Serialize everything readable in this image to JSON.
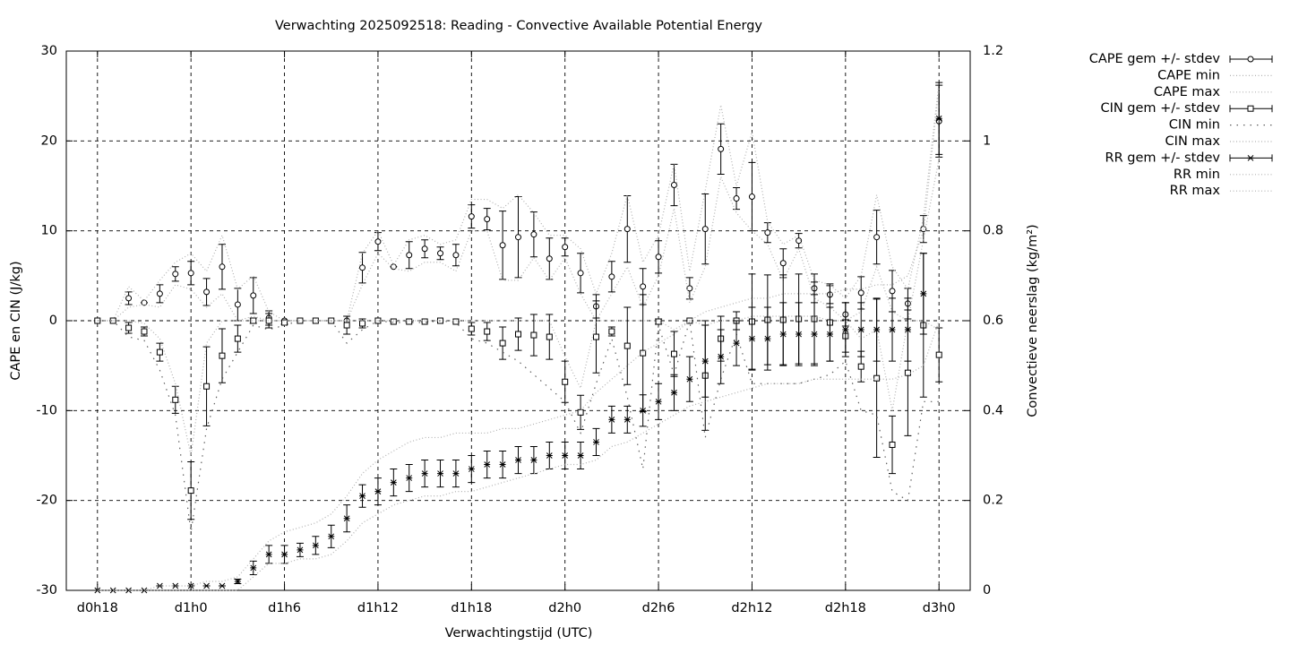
{
  "chart_data": {
    "type": "errorbar",
    "title": "Verwachting 2025092518: Reading - Convective Available Potential Energy",
    "xlabel": "Verwachtingstijd (UTC)",
    "ylabel": "CAPE en CIN (J/kg)",
    "y2label": "Convectieve neerslag (kg/m²)",
    "grid": true,
    "legend": "outside-top-right",
    "xlim": [
      16,
      74
    ],
    "xticks": [
      {
        "value": 18,
        "label": "d0h18"
      },
      {
        "value": 24,
        "label": "d1h0"
      },
      {
        "value": 30,
        "label": "d1h6"
      },
      {
        "value": 36,
        "label": "d1h12"
      },
      {
        "value": 42,
        "label": "d1h18"
      },
      {
        "value": 48,
        "label": "d2h0"
      },
      {
        "value": 54,
        "label": "d2h6"
      },
      {
        "value": 60,
        "label": "d2h12"
      },
      {
        "value": 66,
        "label": "d2h18"
      },
      {
        "value": 72,
        "label": "d3h0"
      }
    ],
    "ylim": [
      -30,
      30
    ],
    "yticks": [
      -30,
      -20,
      -10,
      0,
      10,
      20,
      30
    ],
    "y2lim": [
      0,
      1.2
    ],
    "y2ticks": [
      0,
      0.2,
      0.4,
      0.6,
      0.8,
      1,
      1.2
    ],
    "x": [
      18,
      19,
      20,
      21,
      22,
      23,
      24,
      25,
      26,
      27,
      28,
      29,
      30,
      31,
      32,
      33,
      34,
      35,
      36,
      37,
      38,
      39,
      40,
      41,
      42,
      43,
      44,
      45,
      46,
      47,
      48,
      49,
      50,
      51,
      52,
      53,
      54,
      55,
      56,
      57,
      58,
      59,
      60,
      61,
      62,
      63,
      64,
      65,
      66,
      67,
      68,
      69,
      70,
      71,
      72
    ],
    "series": [
      {
        "name": "CAPE gem +/- stdev",
        "color": "#000000",
        "marker": "circle",
        "values": [
          0,
          0,
          2.5,
          2.0,
          3.0,
          5.2,
          5.3,
          3.2,
          6.0,
          1.8,
          2.8,
          0.3,
          0,
          0,
          0,
          0,
          0,
          5.9,
          8.8,
          6.0,
          7.3,
          8.0,
          7.5,
          7.3,
          11.6,
          11.3,
          8.4,
          9.3,
          9.6,
          6.9,
          8.2,
          5.3,
          1.6,
          4.9,
          10.2,
          3.8,
          7.1,
          15.1,
          3.6,
          10.2,
          19.1,
          13.6,
          13.8,
          9.8,
          6.4,
          8.9,
          3.6,
          2.9,
          0.7,
          3.1,
          9.3,
          3.3,
          1.9,
          10.2,
          22.2
        ],
        "errors": [
          0,
          0,
          0.7,
          0,
          1.0,
          0.8,
          1.3,
          1.5,
          2.5,
          1.8,
          2.0,
          0.8,
          0,
          0,
          0,
          0,
          0,
          1.7,
          1.0,
          0,
          1.5,
          1.0,
          0.7,
          1.2,
          1.3,
          1.2,
          3.8,
          4.5,
          2.5,
          2.3,
          1.0,
          2.2,
          1.3,
          1.7,
          3.7,
          2.0,
          1.8,
          2.3,
          1.2,
          3.9,
          2.8,
          1.2,
          3.8,
          1.1,
          1.6,
          0.8,
          0.7,
          1.0,
          1.3,
          1.8,
          3.0,
          2.3,
          1.7,
          1.5,
          4.0
        ]
      },
      {
        "name": "CAPE min",
        "color": "#b0b0b0",
        "dash": "dotted",
        "values": [
          0,
          0,
          1.5,
          1.8,
          1.5,
          4.0,
          3.5,
          1.5,
          3.0,
          0,
          0.5,
          0,
          0,
          0,
          0,
          0,
          0,
          4.0,
          7.5,
          5.8,
          5.5,
          6.5,
          6.5,
          5.5,
          10.0,
          10.0,
          4.5,
          4.5,
          7.0,
          4.5,
          7.0,
          3.0,
          0,
          3.0,
          6.0,
          1.5,
          5.0,
          12.5,
          2.0,
          6.0,
          16.0,
          12.0,
          10.0,
          8.5,
          4.5,
          8.0,
          2.5,
          1.5,
          0,
          1.0,
          6.0,
          1.0,
          0,
          9.0,
          18.0
        ]
      },
      {
        "name": "CAPE max",
        "color": "#b0b0b0",
        "dash": "dotted",
        "values": [
          0,
          0,
          3.8,
          2.2,
          4.5,
          6.5,
          7.5,
          5.5,
          9.5,
          3.5,
          5.0,
          1.0,
          0,
          0,
          0,
          0,
          0,
          7.5,
          10.0,
          6.2,
          9.0,
          9.5,
          8.5,
          9.0,
          13.5,
          13.5,
          12.5,
          14.0,
          12.0,
          9.5,
          9.5,
          8.0,
          3.0,
          7.5,
          14.0,
          6.5,
          9.5,
          17.5,
          5.5,
          14.5,
          24.0,
          15.0,
          21.0,
          11.0,
          8.5,
          9.5,
          4.5,
          4.0,
          2.5,
          5.0,
          14.0,
          6.0,
          3.5,
          11.5,
          26.5
        ]
      },
      {
        "name": "CIN gem +/- stdev",
        "color": "#000000",
        "marker": "square",
        "values": [
          0,
          0,
          -0.8,
          -1.2,
          -3.5,
          -8.8,
          -18.9,
          -7.3,
          -3.9,
          -2.0,
          0,
          0,
          -0.2,
          0,
          0,
          0,
          -0.5,
          -0.3,
          0,
          -0.1,
          -0.1,
          -0.1,
          0,
          -0.1,
          -0.9,
          -1.2,
          -2.5,
          -1.5,
          -1.6,
          -1.8,
          -6.8,
          -10.2,
          -1.8,
          -1.2,
          -2.8,
          -3.6,
          -0.1,
          -3.7,
          0,
          -6.1,
          -2.0,
          0,
          -0.1,
          0.1,
          0.1,
          0.2,
          0.2,
          -0.2,
          -1.7,
          -5.1,
          -6.4,
          -13.8,
          -5.8,
          -0.5,
          -3.8
        ],
        "errors": [
          0,
          0,
          0.6,
          0.5,
          1.0,
          1.5,
          3.2,
          4.4,
          3.0,
          1.5,
          0.3,
          0.8,
          0.2,
          0,
          0,
          0,
          1.0,
          0.5,
          0,
          0,
          0,
          0,
          0,
          0,
          0.7,
          1.0,
          1.8,
          1.8,
          2.3,
          2.5,
          2.3,
          1.9,
          4.0,
          0.5,
          4.3,
          6.5,
          0.3,
          2.5,
          0,
          6.1,
          2.5,
          1.0,
          5.3,
          5.0,
          5.0,
          5.0,
          5.0,
          4.3,
          1.8,
          1.7,
          8.8,
          3.2,
          7.0,
          8.0,
          3.0
        ]
      },
      {
        "name": "CIN min",
        "color": "#606060",
        "dash": "sparse",
        "values": [
          0,
          0,
          -1.8,
          -2.2,
          -5.5,
          -10.5,
          -23.5,
          -12.0,
          -6.5,
          -3.5,
          -0.5,
          -1.0,
          -0.5,
          0,
          0,
          0,
          -2.5,
          -1.0,
          0,
          -0.2,
          -0.2,
          -0.2,
          0,
          -0.2,
          -2.0,
          -2.5,
          -3.5,
          -4.5,
          -6.0,
          -7.5,
          -9.0,
          -12.5,
          -7.0,
          -2.0,
          -8.5,
          -16.5,
          -0.5,
          -6.0,
          0,
          -13.0,
          -6.5,
          -1.5,
          -7.0,
          -7.0,
          -7.0,
          -7.0,
          -6.5,
          -6.0,
          -4.5,
          -10.0,
          -10.5,
          -19.0,
          -20.0,
          -9.0,
          -9.0
        ]
      },
      {
        "name": "CIN max",
        "color": "#b0b0b0",
        "dash": "dotted",
        "values": [
          0,
          0,
          0,
          -0.3,
          -2.0,
          -7.0,
          -15.0,
          -2.5,
          0,
          0,
          0,
          0,
          0,
          0,
          0,
          0,
          0,
          0,
          0,
          0,
          0,
          0,
          0,
          0,
          0,
          0,
          0,
          0,
          0,
          0,
          -4.0,
          -7.5,
          0,
          0,
          0,
          0,
          0,
          -1.0,
          0,
          -0.5,
          0,
          0,
          0.5,
          0.5,
          0.5,
          0.5,
          0.5,
          0,
          0,
          -2.0,
          -1.0,
          -10.0,
          0,
          0,
          -1.0
        ]
      },
      {
        "name": "RR gem +/- stdev",
        "color": "#000000",
        "marker": "star",
        "axis": "y2",
        "values": [
          0,
          0,
          0,
          0,
          0.01,
          0.01,
          0.01,
          0.01,
          0.01,
          0.02,
          0.05,
          0.08,
          0.08,
          0.09,
          0.1,
          0.12,
          0.16,
          0.21,
          0.22,
          0.24,
          0.25,
          0.26,
          0.26,
          0.26,
          0.27,
          0.28,
          0.28,
          0.29,
          0.29,
          0.3,
          0.3,
          0.3,
          0.33,
          0.38,
          0.38,
          0.4,
          0.42,
          0.44,
          0.47,
          0.51,
          0.52,
          0.55,
          0.56,
          0.56,
          0.57,
          0.57,
          0.57,
          0.57,
          0.58,
          0.58,
          0.58,
          0.58,
          0.58,
          0.66,
          1.05
        ],
        "errors": [
          0,
          0,
          0,
          0,
          0,
          0,
          0,
          0,
          0,
          0.005,
          0.015,
          0.02,
          0.02,
          0.015,
          0.02,
          0.025,
          0.03,
          0.025,
          0.03,
          0.03,
          0.03,
          0.03,
          0.03,
          0.03,
          0.03,
          0.03,
          0.03,
          0.03,
          0.03,
          0.03,
          0.03,
          0.03,
          0.03,
          0.03,
          0.03,
          0.035,
          0.04,
          0.04,
          0.05,
          0.08,
          0.06,
          0.05,
          0.07,
          0.07,
          0.07,
          0.07,
          0.07,
          0.06,
          0.06,
          0.06,
          0.07,
          0.07,
          0.07,
          0.09,
          0.08
        ]
      },
      {
        "name": "RR min",
        "color": "#b0b0b0",
        "dash": "dotted",
        "axis": "y2",
        "values": [
          0,
          0,
          0,
          0,
          0,
          0,
          0,
          0,
          0,
          0,
          0.03,
          0.06,
          0.06,
          0.07,
          0.07,
          0.08,
          0.11,
          0.15,
          0.17,
          0.19,
          0.2,
          0.21,
          0.21,
          0.22,
          0.22,
          0.23,
          0.24,
          0.25,
          0.26,
          0.27,
          0.28,
          0.28,
          0.29,
          0.32,
          0.33,
          0.35,
          0.37,
          0.39,
          0.41,
          0.42,
          0.43,
          0.44,
          0.45,
          0.46,
          0.46,
          0.46,
          0.47,
          0.47,
          0.47,
          0.47,
          0.47,
          0.47,
          0.48,
          0.5,
          0.6
        ]
      },
      {
        "name": "RR max",
        "color": "#b0b0b0",
        "dash": "dotted",
        "axis": "y2",
        "values": [
          0,
          0,
          0,
          0,
          0.01,
          0.01,
          0.01,
          0.02,
          0.02,
          0.03,
          0.07,
          0.11,
          0.13,
          0.14,
          0.15,
          0.17,
          0.21,
          0.26,
          0.29,
          0.31,
          0.33,
          0.34,
          0.34,
          0.35,
          0.35,
          0.35,
          0.36,
          0.36,
          0.37,
          0.38,
          0.39,
          0.4,
          0.44,
          0.47,
          0.5,
          0.53,
          0.55,
          0.57,
          0.6,
          0.62,
          0.63,
          0.64,
          0.65,
          0.65,
          0.66,
          0.66,
          0.66,
          0.66,
          0.67,
          0.67,
          0.68,
          0.68,
          0.7,
          0.8,
          1.12
        ]
      }
    ]
  }
}
